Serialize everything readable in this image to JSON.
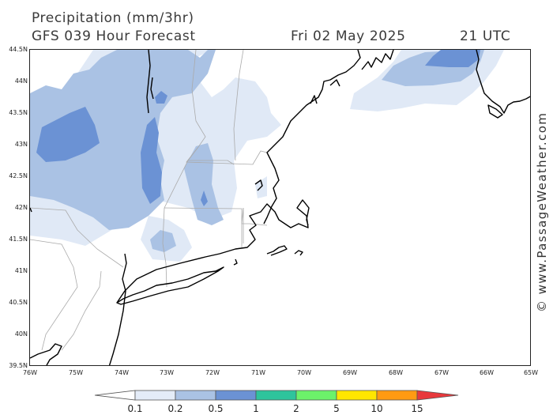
{
  "header": {
    "title": "Precipitation (mm/3hr)",
    "model": "GFS 039 Hour Forecast",
    "date": "Fri 02 May 2025",
    "time": "21 UTC"
  },
  "axes": {
    "lat_labels": [
      "44.5N",
      "44N",
      "43.5N",
      "43N",
      "42.5N",
      "42N",
      "41.5N",
      "41N",
      "40.5N",
      "40N",
      "39.5N"
    ],
    "lon_labels": [
      "76W",
      "75W",
      "74W",
      "73W",
      "72W",
      "71W",
      "70W",
      "69W",
      "68W",
      "67W",
      "66W",
      "65W"
    ]
  },
  "legend": {
    "labels": [
      "0.1",
      "0.2",
      "0.5",
      "1",
      "2",
      "5",
      "10",
      "15"
    ],
    "colors": [
      "#ffffff",
      "#e4ecf8",
      "#aac2e4",
      "#6b92d4",
      "#2ec49c",
      "#6cf26a",
      "#ffe600",
      "#ff9a12",
      "#e8383c"
    ]
  },
  "credit": "© www.PassageWeather.com",
  "map": {
    "precip_colors": {
      "light": "#e0e9f6",
      "mid": "#aac2e4",
      "heavy": "#6b92d4"
    },
    "coast_color": "#000000",
    "border_color": "#aaaaaa"
  }
}
